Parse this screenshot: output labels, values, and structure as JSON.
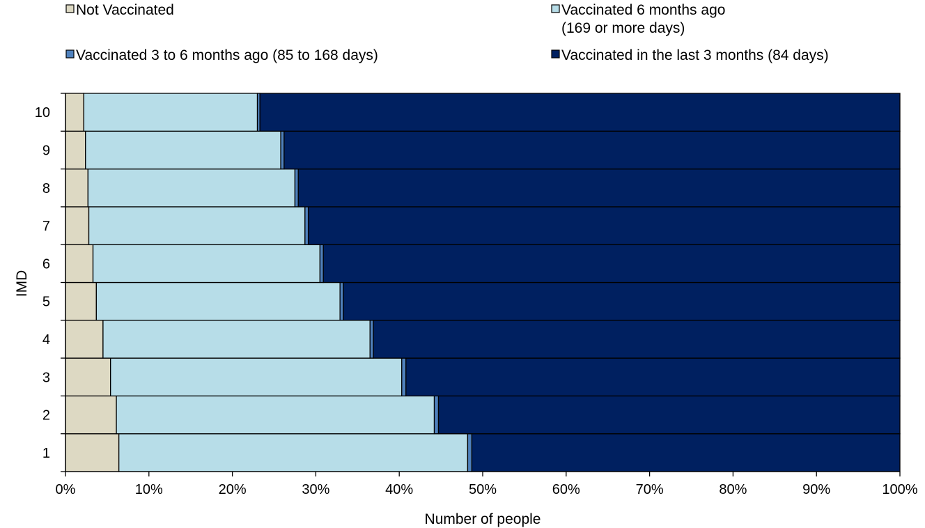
{
  "chart_data": {
    "type": "bar",
    "orientation": "horizontal",
    "stacked": true,
    "title": "",
    "xlabel": "Number of people",
    "ylabel": "IMD",
    "xlim": [
      0,
      100
    ],
    "x_unit": "%",
    "x_ticks": [
      "0%",
      "10%",
      "20%",
      "30%",
      "40%",
      "50%",
      "60%",
      "70%",
      "80%",
      "90%",
      "100%"
    ],
    "categories": [
      "1",
      "2",
      "3",
      "4",
      "5",
      "6",
      "7",
      "8",
      "9",
      "10"
    ],
    "series": [
      {
        "name": "Not Vaccinated",
        "legend_lines": [
          "Not Vaccinated"
        ],
        "color": "#ddd9c3",
        "values": [
          6.4,
          6.1,
          5.4,
          4.5,
          3.7,
          3.3,
          2.8,
          2.7,
          2.4,
          2.2
        ]
      },
      {
        "name": "Vaccinated 6 months ago (169 or more days)",
        "legend_lines": [
          "Vaccinated 6 months ago",
          "(169 or more days)"
        ],
        "color": "#b7dde8",
        "values": [
          41.8,
          38.1,
          34.9,
          32.0,
          29.2,
          27.2,
          25.9,
          24.8,
          23.4,
          20.8
        ]
      },
      {
        "name": "Vaccinated 3 to 6 months ago (85 to 168 days)",
        "legend_lines": [
          "Vaccinated 3 to 6 months ago (85 to 168 days)"
        ],
        "color": "#4f81bd",
        "values": [
          0.5,
          0.5,
          0.5,
          0.4,
          0.4,
          0.4,
          0.4,
          0.4,
          0.4,
          0.3
        ]
      },
      {
        "name": "Vaccinated in the last 3 months (84 days)",
        "legend_lines": [
          "Vaccinated in the last 3 months (84 days)"
        ],
        "color": "#002060",
        "values": [
          51.3,
          55.3,
          59.2,
          63.1,
          66.7,
          69.1,
          70.9,
          72.1,
          73.8,
          76.7
        ]
      }
    ],
    "grid": false,
    "legend_position": "top"
  }
}
